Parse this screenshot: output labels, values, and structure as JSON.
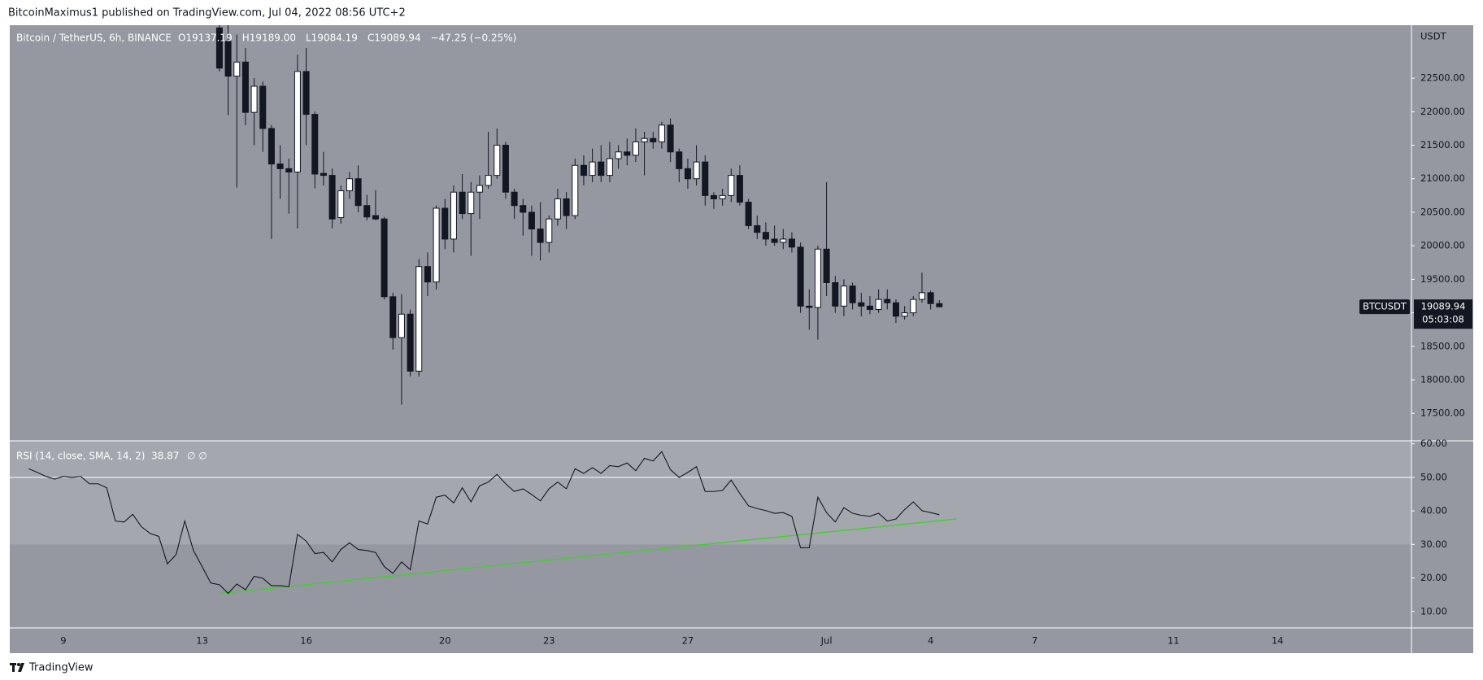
{
  "page": {
    "byline": "BitcoinMaximus1 published on TradingView.com, Jul 04, 2022 08:56 UTC+2",
    "footer": "TradingView"
  },
  "chart_data": {
    "type": "candlestick",
    "title": "Bitcoin / TetherUS, 6h, BINANCE",
    "ohlc_header": [
      "O19137.19",
      "H19189.00",
      "L19084.19",
      "C19089.94",
      "−47.25 (−0.25%)"
    ],
    "y_axis_label": "USDT",
    "symbol_tag": "BTCUSDT",
    "countdown": "05:03:08",
    "up_color": "#ffffff",
    "down_color": "#131722",
    "categories": [
      null,
      null,
      null,
      null,
      "9",
      null,
      null,
      null,
      null,
      null,
      null,
      null,
      null,
      null,
      null,
      null,
      null,
      null,
      null,
      null,
      "13",
      null,
      null,
      null,
      null,
      null,
      null,
      null,
      null,
      null,
      null,
      null,
      "16",
      null,
      null,
      null,
      null,
      null,
      null,
      null,
      null,
      null,
      null,
      null,
      null,
      null,
      null,
      null,
      "20",
      null,
      null,
      null,
      null,
      null,
      null,
      null,
      null,
      null,
      null,
      null,
      "23",
      null,
      null,
      null,
      null,
      null,
      null,
      null,
      null,
      null,
      null,
      null,
      null,
      null,
      null,
      null,
      "27",
      null,
      null,
      null,
      null,
      null,
      null,
      null,
      null,
      null,
      null,
      null,
      null,
      null,
      null,
      null,
      "Jul",
      null,
      null,
      null,
      null,
      null,
      null,
      null,
      null,
      null,
      null,
      null,
      "4",
      null,
      null,
      null,
      null,
      null,
      null,
      null,
      null,
      null,
      null,
      null,
      "7",
      null,
      null,
      null,
      null,
      null,
      null,
      null,
      null,
      null,
      null,
      null,
      null,
      null,
      null,
      null,
      "11",
      null,
      null,
      null,
      null,
      null,
      null,
      null,
      null,
      null,
      null,
      null,
      "14"
    ],
    "open": [
      null,
      null,
      null,
      null,
      null,
      null,
      null,
      null,
      null,
      null,
      null,
      null,
      null,
      null,
      null,
      null,
      null,
      null,
      null,
      null,
      null,
      null,
      23250,
      23050,
      22530,
      22740,
      21990,
      22380,
      21750,
      21220,
      21150,
      21100,
      22600,
      21960,
      21080,
      21050,
      20420,
      20820,
      21000,
      20600,
      20450,
      20400,
      19240,
      18630,
      18980,
      18130,
      19690,
      19460,
      20560,
      20100,
      20800,
      20480,
      20800,
      20900,
      21050,
      21500,
      20800,
      20600,
      20500,
      20250,
      20050,
      20400,
      20700,
      20450,
      21200,
      21050,
      21250,
      21050,
      21300,
      21400,
      21350,
      21550,
      21600,
      21550,
      21800,
      21400,
      21150,
      21000,
      21250,
      20750,
      20700,
      20750,
      21050,
      20650,
      20300,
      20200,
      20100,
      20050,
      20100,
      19980,
      19100,
      19080,
      19950,
      19450,
      19100,
      19400,
      19150,
      19100,
      19050,
      19200,
      19150,
      18950,
      19000,
      19200,
      19300,
      19137.19,
      null,
      null,
      null,
      null,
      null,
      null,
      null,
      null,
      null,
      null,
      null,
      null,
      null,
      null,
      null,
      null,
      null,
      null,
      null,
      null,
      null,
      null,
      null,
      null,
      null,
      null,
      null,
      null,
      null,
      null,
      null,
      null,
      null,
      null,
      null,
      null,
      null,
      null,
      null
    ],
    "high": [
      null,
      null,
      null,
      null,
      null,
      null,
      null,
      null,
      null,
      null,
      null,
      null,
      null,
      null,
      null,
      null,
      null,
      null,
      null,
      null,
      null,
      null,
      23400,
      23300,
      23150,
      22950,
      22500,
      22450,
      21800,
      21500,
      21300,
      22850,
      22950,
      22000,
      21400,
      21150,
      20900,
      21100,
      21200,
      20760,
      20830,
      20430,
      19300,
      19280,
      19050,
      19800,
      19900,
      20600,
      20700,
      20900,
      21070,
      20950,
      21050,
      21700,
      21750,
      21550,
      20850,
      20700,
      20600,
      20650,
      20450,
      20850,
      20800,
      21300,
      21350,
      21450,
      21500,
      21550,
      21500,
      21600,
      21750,
      21700,
      21700,
      21850,
      21900,
      21450,
      21300,
      21500,
      21350,
      20800,
      20850,
      21150,
      21200,
      20700,
      20450,
      20350,
      20300,
      20250,
      20200,
      20050,
      19350,
      20000,
      20950,
      19550,
      19500,
      19450,
      19300,
      19250,
      19350,
      19350,
      19200,
      19100,
      19250,
      19600,
      19330,
      19189,
      null,
      null,
      null,
      null,
      null,
      null,
      null,
      null,
      null,
      null,
      null,
      null,
      null,
      null,
      null,
      null,
      null,
      null,
      null,
      null,
      null,
      null,
      null,
      null,
      null,
      null,
      null,
      null,
      null,
      null,
      null,
      null,
      null,
      null,
      null,
      null,
      null,
      null,
      null
    ],
    "low": [
      null,
      null,
      null,
      null,
      null,
      null,
      null,
      null,
      null,
      null,
      null,
      null,
      null,
      null,
      null,
      null,
      null,
      null,
      null,
      null,
      null,
      null,
      22600,
      21950,
      20870,
      21800,
      21500,
      21400,
      20100,
      20700,
      20480,
      20260,
      21500,
      20860,
      20900,
      20260,
      20330,
      20700,
      20500,
      20380,
      20380,
      19200,
      18450,
      17630,
      18050,
      18050,
      19250,
      19350,
      19950,
      19900,
      20400,
      19850,
      20400,
      20850,
      21000,
      20700,
      20400,
      20150,
      19850,
      19780,
      19900,
      20300,
      20250,
      20400,
      20900,
      20950,
      20950,
      20950,
      21150,
      21200,
      21250,
      21050,
      21450,
      21450,
      21250,
      20950,
      20850,
      20900,
      20600,
      20550,
      20600,
      20650,
      20600,
      20250,
      20100,
      20000,
      20000,
      19950,
      19900,
      19000,
      18750,
      18600,
      19250,
      19000,
      18950,
      19050,
      18950,
      18980,
      19000,
      19050,
      18850,
      18900,
      18950,
      19150,
      19050,
      19084.19,
      null,
      null,
      null,
      null,
      null,
      null,
      null,
      null,
      null,
      null,
      null,
      null,
      null,
      null,
      null,
      null,
      null,
      null,
      null,
      null,
      null,
      null,
      null,
      null,
      null,
      null,
      null,
      null,
      null,
      null,
      null,
      null,
      null,
      null,
      null,
      null,
      null,
      null,
      null
    ],
    "close": [
      null,
      null,
      null,
      null,
      null,
      null,
      null,
      null,
      null,
      null,
      null,
      null,
      null,
      null,
      null,
      null,
      null,
      null,
      null,
      null,
      null,
      null,
      22650,
      22530,
      22740,
      21990,
      22380,
      21750,
      21220,
      21150,
      21100,
      22600,
      21960,
      21070,
      21050,
      20400,
      20820,
      21000,
      20600,
      20430,
      20400,
      19240,
      18630,
      18980,
      18130,
      19690,
      19460,
      20560,
      20100,
      20800,
      20480,
      20800,
      20900,
      21050,
      21500,
      20800,
      20600,
      20500,
      20250,
      20050,
      20400,
      20700,
      20450,
      21200,
      21050,
      21250,
      21050,
      21300,
      21400,
      21350,
      21550,
      21600,
      21550,
      21800,
      21400,
      21150,
      21000,
      21250,
      20750,
      20700,
      20750,
      21050,
      20650,
      20300,
      20200,
      20100,
      20050,
      20100,
      19980,
      19100,
      19080,
      19950,
      19450,
      19100,
      19400,
      19150,
      19100,
      19050,
      19200,
      19150,
      18950,
      19000,
      19200,
      19300,
      19137.19,
      19089.94,
      null,
      null,
      null,
      null,
      null,
      null,
      null,
      null,
      null,
      null,
      null,
      null,
      null,
      null,
      null,
      null,
      null,
      null,
      null,
      null,
      null,
      null,
      null,
      null,
      null,
      null,
      null,
      null,
      null,
      null,
      null,
      null,
      null,
      null,
      null,
      null,
      null,
      null,
      null
    ],
    "ylim": [
      17090,
      23290
    ],
    "yticks": [
      {
        "value": 17500,
        "label": "17500.00"
      },
      {
        "value": 18000,
        "label": "18000.00"
      },
      {
        "value": 18500,
        "label": "18500.00"
      },
      {
        "value": 19000,
        "label": "19000.00"
      },
      {
        "value": 19500,
        "label": "19500.00"
      },
      {
        "value": 20000,
        "label": "20000.00"
      },
      {
        "value": 20500,
        "label": "20500.00"
      },
      {
        "value": 21000,
        "label": "21000.00"
      },
      {
        "value": 21500,
        "label": "21500.00"
      },
      {
        "value": 22000,
        "label": "22000.00"
      },
      {
        "value": 22500,
        "label": "22500.00"
      }
    ],
    "rsi": {
      "type": "line",
      "title": "RSI (14, close, SMA, 14, 2)",
      "extra": "∅ ∅",
      "color": "#131722",
      "values": [
        52.6,
        51.5,
        50.3,
        49.5,
        50.3,
        50,
        50.3,
        48.1,
        48.1,
        46.9,
        37,
        36.7,
        39,
        35.3,
        33.3,
        32.4,
        24.2,
        27,
        37,
        28.2,
        23.4,
        18.5,
        18,
        15.4,
        18.2,
        16.5,
        20.5,
        19.9,
        17.7,
        17.7,
        17.4,
        33,
        31,
        27.3,
        27.6,
        24.8,
        28.5,
        30.5,
        28.5,
        28.2,
        27.6,
        23.4,
        21.4,
        24.8,
        22.5,
        37,
        36.1,
        44.1,
        44.7,
        42.4,
        46.9,
        42.7,
        47.5,
        48.6,
        50.9,
        48.1,
        45.8,
        46.6,
        44.9,
        43,
        46.6,
        48.6,
        46.6,
        52.6,
        51.2,
        52.9,
        51.2,
        53.5,
        53.2,
        54.3,
        52,
        55.7,
        54.9,
        57.7,
        52.3,
        50,
        51.5,
        53.2,
        45.8,
        45.8,
        46.1,
        49.2,
        45.2,
        41.5,
        40.7,
        40.1,
        39.3,
        39.5,
        38.4,
        29,
        29,
        44.1,
        39.5,
        36.7,
        41,
        39.3,
        38.7,
        38.4,
        39.3,
        37,
        37.6,
        40.4,
        42.7,
        40.1,
        39.5,
        38.87,
        null,
        null,
        null,
        null,
        null,
        null,
        null,
        null,
        null,
        null,
        null,
        null,
        null,
        null,
        null,
        null,
        null,
        null,
        null,
        null,
        null,
        null,
        null,
        null,
        null,
        null,
        null,
        null,
        null,
        null,
        null,
        null,
        null,
        null,
        null,
        null,
        null,
        null,
        null
      ],
      "band": [
        30,
        70
      ],
      "midline": 50,
      "band_color": "#a4a7ae",
      "trendline": {
        "start": 22,
        "end": 107,
        "values": [
          15.4,
          37.6
        ],
        "color": "#3fd128"
      },
      "ylim": [
        5.1,
        60.9
      ],
      "yticks": [
        {
          "value": 10,
          "label": "10.00"
        },
        {
          "value": 20,
          "label": "20.00"
        },
        {
          "value": 30,
          "label": "30.00"
        },
        {
          "value": 40,
          "label": "40.00"
        },
        {
          "value": 50,
          "label": "50.00"
        },
        {
          "value": 60,
          "label": "60.00"
        }
      ]
    }
  }
}
